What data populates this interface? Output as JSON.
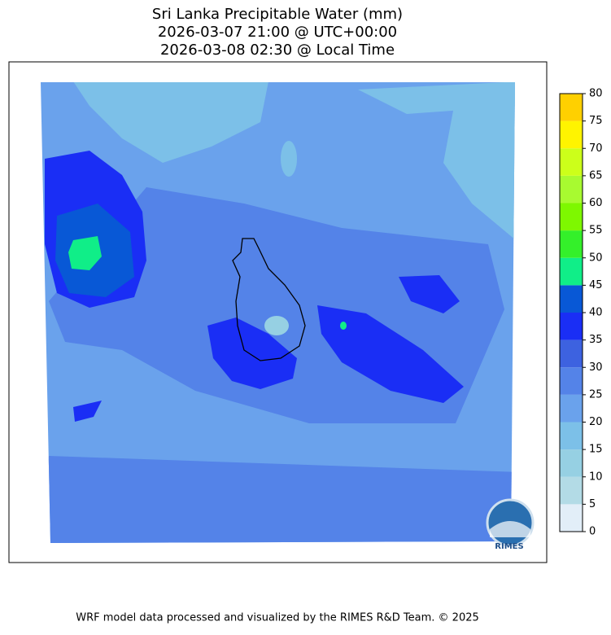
{
  "title": [
    "Sri Lanka Precipitable Water (mm)",
    "2026-03-07 21:00 @ UTC+00:00",
    "2026-03-08 02:30 @ Local Time"
  ],
  "colorbar": {
    "levels": [
      0,
      5,
      10,
      15,
      20,
      25,
      30,
      35,
      40,
      45,
      50,
      55,
      60,
      65,
      70,
      75,
      80
    ],
    "colors": [
      "#e2eef8",
      "#b3dbe6",
      "#96d0e3",
      "#7cc0e8",
      "#6aa2ec",
      "#5483e8",
      "#3d62e0",
      "#1a2ef5",
      "#0858d6",
      "#10ee88",
      "#34f02a",
      "#7ef800",
      "#a8fa30",
      "#ccff1a",
      "#fff400",
      "#ffd000"
    ]
  },
  "logo": "RIMES",
  "footer": "WRF model data processed and visualized by the RIMES R&D Team. © 2025"
}
